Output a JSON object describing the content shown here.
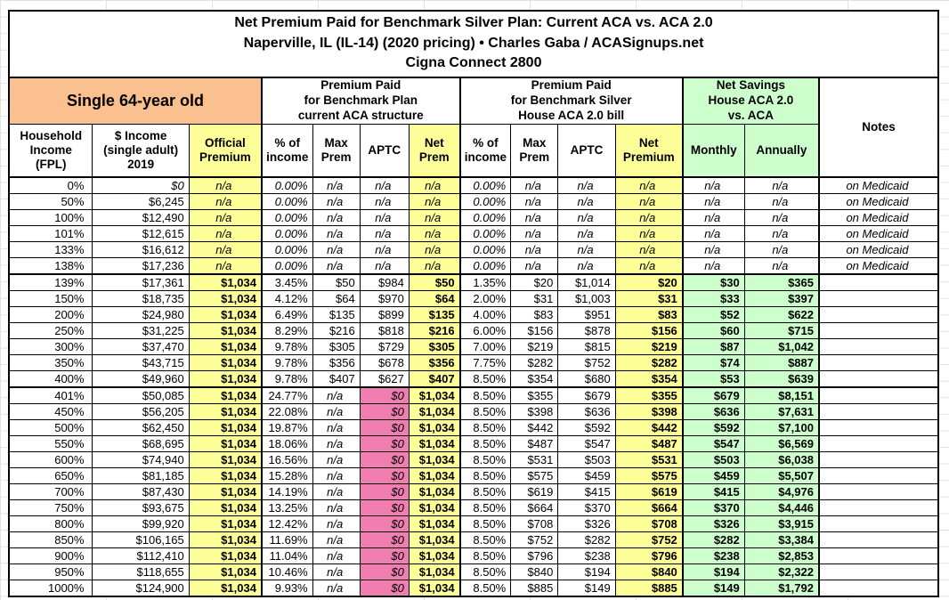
{
  "title": {
    "line1": "Net Premium Paid for Benchmark Silver Plan: Current ACA vs. ACA 2.0",
    "line2": "Naperville, IL (IL-14) (2020 pricing) • Charles Gaba / ACASignups.net",
    "line3": "Cigna Connect 2800"
  },
  "header": {
    "demographic": "Single 64-year old",
    "group_current_aca": "Premium Paid\nfor Benchmark Plan\ncurrent ACA structure",
    "group_aca20": "Premium Paid\nfor Benchmark Silver\nHouse ACA 2.0 bill",
    "group_savings": "Net Savings\nHouse ACA 2.0\nvs. ACA",
    "notes_label": "Notes",
    "columns": [
      "Household\nIncome\n(FPL)",
      "$ Income\n(single adult)\n2019",
      "Official\nPremium",
      "% of\nincome",
      "Max\nPrem",
      "APTC",
      "Net\nPrem",
      "% of\nincome",
      "Max\nPrem",
      "APTC",
      "Net\nPremium",
      "Monthly",
      "Annually"
    ]
  },
  "colors": {
    "demographic_header": "#FAC090",
    "highlight_yellow": "#FFFF99",
    "savings_green": "#CCFFCC",
    "no_aptc_pink": "#F07EB0",
    "grid_border": "#000000"
  },
  "rows": [
    {
      "fpl": "0%",
      "income": "$0",
      "official": "n/a",
      "aca_pct": "0.00%",
      "aca_max": "n/a",
      "aca_aptc": "n/a",
      "aca_net": "n/a",
      "h_pct": "0.00%",
      "h_max": "n/a",
      "h_aptc": "n/a",
      "h_net": "n/a",
      "sav_m": "n/a",
      "sav_y": "n/a",
      "note": "on Medicaid"
    },
    {
      "fpl": "50%",
      "income": "$6,245",
      "official": "n/a",
      "aca_pct": "0.00%",
      "aca_max": "n/a",
      "aca_aptc": "n/a",
      "aca_net": "n/a",
      "h_pct": "0.00%",
      "h_max": "n/a",
      "h_aptc": "n/a",
      "h_net": "n/a",
      "sav_m": "n/a",
      "sav_y": "n/a",
      "note": "on Medicaid"
    },
    {
      "fpl": "100%",
      "income": "$12,490",
      "official": "n/a",
      "aca_pct": "0.00%",
      "aca_max": "n/a",
      "aca_aptc": "n/a",
      "aca_net": "n/a",
      "h_pct": "0.00%",
      "h_max": "n/a",
      "h_aptc": "n/a",
      "h_net": "n/a",
      "sav_m": "n/a",
      "sav_y": "n/a",
      "note": "on Medicaid"
    },
    {
      "fpl": "101%",
      "income": "$12,615",
      "official": "n/a",
      "aca_pct": "0.00%",
      "aca_max": "n/a",
      "aca_aptc": "n/a",
      "aca_net": "n/a",
      "h_pct": "0.00%",
      "h_max": "n/a",
      "h_aptc": "n/a",
      "h_net": "n/a",
      "sav_m": "n/a",
      "sav_y": "n/a",
      "note": "on Medicaid"
    },
    {
      "fpl": "133%",
      "income": "$16,612",
      "official": "n/a",
      "aca_pct": "0.00%",
      "aca_max": "n/a",
      "aca_aptc": "n/a",
      "aca_net": "n/a",
      "h_pct": "0.00%",
      "h_max": "n/a",
      "h_aptc": "n/a",
      "h_net": "n/a",
      "sav_m": "n/a",
      "sav_y": "n/a",
      "note": "on Medicaid"
    },
    {
      "fpl": "138%",
      "income": "$17,236",
      "official": "n/a",
      "aca_pct": "0.00%",
      "aca_max": "n/a",
      "aca_aptc": "n/a",
      "aca_net": "n/a",
      "h_pct": "0.00%",
      "h_max": "n/a",
      "h_aptc": "n/a",
      "h_net": "n/a",
      "sav_m": "n/a",
      "sav_y": "n/a",
      "note": "on Medicaid"
    },
    {
      "fpl": "139%",
      "income": "$17,361",
      "official": "$1,034",
      "aca_pct": "3.45%",
      "aca_max": "$50",
      "aca_aptc": "$984",
      "aca_net": "$50",
      "h_pct": "1.35%",
      "h_max": "$20",
      "h_aptc": "$1,014",
      "h_net": "$20",
      "sav_m": "$30",
      "sav_y": "$365",
      "note": ""
    },
    {
      "fpl": "150%",
      "income": "$18,735",
      "official": "$1,034",
      "aca_pct": "4.12%",
      "aca_max": "$64",
      "aca_aptc": "$970",
      "aca_net": "$64",
      "h_pct": "2.00%",
      "h_max": "$31",
      "h_aptc": "$1,003",
      "h_net": "$31",
      "sav_m": "$33",
      "sav_y": "$397",
      "note": ""
    },
    {
      "fpl": "200%",
      "income": "$24,980",
      "official": "$1,034",
      "aca_pct": "6.49%",
      "aca_max": "$135",
      "aca_aptc": "$899",
      "aca_net": "$135",
      "h_pct": "4.00%",
      "h_max": "$83",
      "h_aptc": "$951",
      "h_net": "$83",
      "sav_m": "$52",
      "sav_y": "$622",
      "note": ""
    },
    {
      "fpl": "250%",
      "income": "$31,225",
      "official": "$1,034",
      "aca_pct": "8.29%",
      "aca_max": "$216",
      "aca_aptc": "$818",
      "aca_net": "$216",
      "h_pct": "6.00%",
      "h_max": "$156",
      "h_aptc": "$878",
      "h_net": "$156",
      "sav_m": "$60",
      "sav_y": "$715",
      "note": ""
    },
    {
      "fpl": "300%",
      "income": "$37,470",
      "official": "$1,034",
      "aca_pct": "9.78%",
      "aca_max": "$305",
      "aca_aptc": "$729",
      "aca_net": "$305",
      "h_pct": "7.00%",
      "h_max": "$219",
      "h_aptc": "$815",
      "h_net": "$219",
      "sav_m": "$87",
      "sav_y": "$1,042",
      "note": ""
    },
    {
      "fpl": "350%",
      "income": "$43,715",
      "official": "$1,034",
      "aca_pct": "9.78%",
      "aca_max": "$356",
      "aca_aptc": "$678",
      "aca_net": "$356",
      "h_pct": "7.75%",
      "h_max": "$282",
      "h_aptc": "$752",
      "h_net": "$282",
      "sav_m": "$74",
      "sav_y": "$887",
      "note": ""
    },
    {
      "fpl": "400%",
      "income": "$49,960",
      "official": "$1,034",
      "aca_pct": "9.78%",
      "aca_max": "$407",
      "aca_aptc": "$627",
      "aca_net": "$407",
      "h_pct": "8.50%",
      "h_max": "$354",
      "h_aptc": "$680",
      "h_net": "$354",
      "sav_m": "$53",
      "sav_y": "$639",
      "note": ""
    },
    {
      "fpl": "401%",
      "income": "$50,085",
      "official": "$1,034",
      "aca_pct": "24.77%",
      "aca_max": "n/a",
      "aca_aptc": "$0",
      "aca_net": "$1,034",
      "h_pct": "8.50%",
      "h_max": "$355",
      "h_aptc": "$679",
      "h_net": "$355",
      "sav_m": "$679",
      "sav_y": "$8,151",
      "note": ""
    },
    {
      "fpl": "450%",
      "income": "$56,205",
      "official": "$1,034",
      "aca_pct": "22.08%",
      "aca_max": "n/a",
      "aca_aptc": "$0",
      "aca_net": "$1,034",
      "h_pct": "8.50%",
      "h_max": "$398",
      "h_aptc": "$636",
      "h_net": "$398",
      "sav_m": "$636",
      "sav_y": "$7,631",
      "note": ""
    },
    {
      "fpl": "500%",
      "income": "$62,450",
      "official": "$1,034",
      "aca_pct": "19.87%",
      "aca_max": "n/a",
      "aca_aptc": "$0",
      "aca_net": "$1,034",
      "h_pct": "8.50%",
      "h_max": "$442",
      "h_aptc": "$592",
      "h_net": "$442",
      "sav_m": "$592",
      "sav_y": "$7,100",
      "note": ""
    },
    {
      "fpl": "550%",
      "income": "$68,695",
      "official": "$1,034",
      "aca_pct": "18.06%",
      "aca_max": "n/a",
      "aca_aptc": "$0",
      "aca_net": "$1,034",
      "h_pct": "8.50%",
      "h_max": "$487",
      "h_aptc": "$547",
      "h_net": "$487",
      "sav_m": "$547",
      "sav_y": "$6,569",
      "note": ""
    },
    {
      "fpl": "600%",
      "income": "$74,940",
      "official": "$1,034",
      "aca_pct": "16.56%",
      "aca_max": "n/a",
      "aca_aptc": "$0",
      "aca_net": "$1,034",
      "h_pct": "8.50%",
      "h_max": "$531",
      "h_aptc": "$503",
      "h_net": "$531",
      "sav_m": "$503",
      "sav_y": "$6,038",
      "note": ""
    },
    {
      "fpl": "650%",
      "income": "$81,185",
      "official": "$1,034",
      "aca_pct": "15.28%",
      "aca_max": "n/a",
      "aca_aptc": "$0",
      "aca_net": "$1,034",
      "h_pct": "8.50%",
      "h_max": "$575",
      "h_aptc": "$459",
      "h_net": "$575",
      "sav_m": "$459",
      "sav_y": "$5,507",
      "note": ""
    },
    {
      "fpl": "700%",
      "income": "$87,430",
      "official": "$1,034",
      "aca_pct": "14.19%",
      "aca_max": "n/a",
      "aca_aptc": "$0",
      "aca_net": "$1,034",
      "h_pct": "8.50%",
      "h_max": "$619",
      "h_aptc": "$415",
      "h_net": "$619",
      "sav_m": "$415",
      "sav_y": "$4,976",
      "note": ""
    },
    {
      "fpl": "750%",
      "income": "$93,675",
      "official": "$1,034",
      "aca_pct": "13.25%",
      "aca_max": "n/a",
      "aca_aptc": "$0",
      "aca_net": "$1,034",
      "h_pct": "8.50%",
      "h_max": "$664",
      "h_aptc": "$370",
      "h_net": "$664",
      "sav_m": "$370",
      "sav_y": "$4,446",
      "note": ""
    },
    {
      "fpl": "800%",
      "income": "$99,920",
      "official": "$1,034",
      "aca_pct": "12.42%",
      "aca_max": "n/a",
      "aca_aptc": "$0",
      "aca_net": "$1,034",
      "h_pct": "8.50%",
      "h_max": "$708",
      "h_aptc": "$326",
      "h_net": "$708",
      "sav_m": "$326",
      "sav_y": "$3,915",
      "note": ""
    },
    {
      "fpl": "850%",
      "income": "$106,165",
      "official": "$1,034",
      "aca_pct": "11.69%",
      "aca_max": "n/a",
      "aca_aptc": "$0",
      "aca_net": "$1,034",
      "h_pct": "8.50%",
      "h_max": "$752",
      "h_aptc": "$282",
      "h_net": "$752",
      "sav_m": "$282",
      "sav_y": "$3,384",
      "note": ""
    },
    {
      "fpl": "900%",
      "income": "$112,410",
      "official": "$1,034",
      "aca_pct": "11.04%",
      "aca_max": "n/a",
      "aca_aptc": "$0",
      "aca_net": "$1,034",
      "h_pct": "8.50%",
      "h_max": "$796",
      "h_aptc": "$238",
      "h_net": "$796",
      "sav_m": "$238",
      "sav_y": "$2,853",
      "note": ""
    },
    {
      "fpl": "950%",
      "income": "$118,655",
      "official": "$1,034",
      "aca_pct": "10.46%",
      "aca_max": "n/a",
      "aca_aptc": "$0",
      "aca_net": "$1,034",
      "h_pct": "8.50%",
      "h_max": "$840",
      "h_aptc": "$194",
      "h_net": "$840",
      "sav_m": "$194",
      "sav_y": "$2,322",
      "note": ""
    },
    {
      "fpl": "1000%",
      "income": "$124,900",
      "official": "$1,034",
      "aca_pct": "9.93%",
      "aca_max": "n/a",
      "aca_aptc": "$0",
      "aca_net": "$1,034",
      "h_pct": "8.50%",
      "h_max": "$885",
      "h_aptc": "$149",
      "h_net": "$885",
      "sav_m": "$149",
      "sav_y": "$1,792",
      "note": ""
    }
  ]
}
